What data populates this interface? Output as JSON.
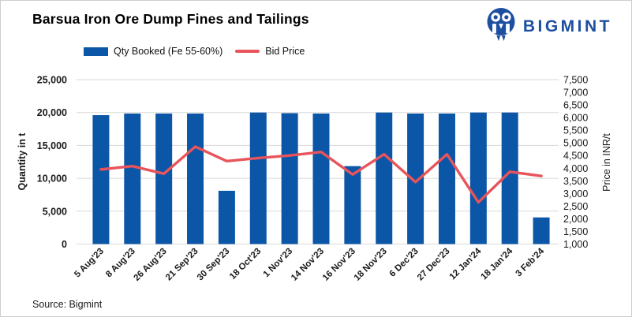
{
  "header": {
    "title": "Barsua Iron Ore Dump Fines and Tailings",
    "brand": "BIGMINT"
  },
  "legend": [
    {
      "label": "Qty Booked (Fe 55-60%)",
      "type": "bar",
      "color": "#0b56a6"
    },
    {
      "label": "Bid Price",
      "type": "line",
      "color": "#e8545b"
    }
  ],
  "source": {
    "text": "Source: Bigmint"
  },
  "colors": {
    "bar": "#0b56a6",
    "line": "#e8545b",
    "grid": "#d9d9d9",
    "axis_text": "#1a1a1a",
    "brand_blue": "#1d4fa0"
  },
  "chart_data": {
    "type": "bar",
    "title": "Barsua Iron Ore Dump Fines and Tailings",
    "categories": [
      "5 Aug'23",
      "8 Aug'23",
      "26 Aug'23",
      "21 Sep'23",
      "30 Sep'23",
      "18 Oct'23",
      "1 Nov'23",
      "14 Nov'23",
      "16 Nov'23",
      "18 Nov'23",
      "6 Dec'23",
      "27 Dec'23",
      "12 Jan'24",
      "18 Jan'24",
      "3 Feb'24"
    ],
    "series": [
      {
        "name": "Qty Booked (Fe 55-60%)",
        "type": "bar",
        "axis": "left",
        "color": "#0b56a6",
        "values": [
          19600,
          19850,
          19850,
          19850,
          8100,
          20000,
          19900,
          19850,
          11850,
          20000,
          19850,
          19850,
          20000,
          20000,
          4050
        ]
      },
      {
        "name": "Bid Price",
        "type": "line",
        "axis": "right",
        "color": "#e8545b",
        "values": [
          3950,
          4080,
          3780,
          4850,
          4280,
          4400,
          4500,
          4640,
          3750,
          4550,
          3450,
          4550,
          2650,
          3860,
          3690
        ]
      }
    ],
    "ylabel_left": "Quantity in t",
    "ylabel_right": "Price in INR/t",
    "ylim_left": [
      0,
      25000
    ],
    "ytick_step_left": 5000,
    "ylim_right": [
      1000,
      7500
    ],
    "ytick_step_right": 500,
    "grid": true,
    "legend_position": "top"
  }
}
